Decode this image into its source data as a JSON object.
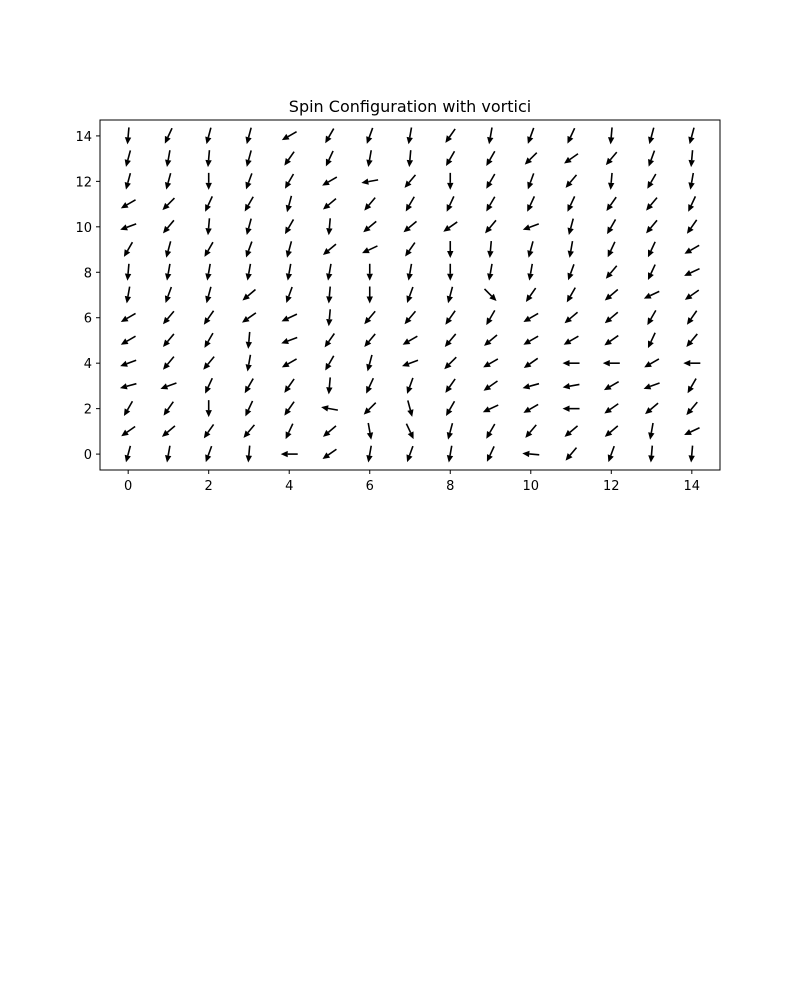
{
  "chart_data": {
    "type": "quiver",
    "title": "Spin Configuration with vortici",
    "xlabel": "",
    "ylabel": "",
    "xlim": [
      -0.7,
      14.7
    ],
    "ylim": [
      -0.7,
      14.7
    ],
    "xticks": [
      0,
      2,
      4,
      6,
      8,
      10,
      12,
      14
    ],
    "yticks": [
      0,
      2,
      4,
      6,
      8,
      10,
      12,
      14
    ],
    "grid": false,
    "arrow_color": "#000000",
    "grid_x": [
      0,
      1,
      2,
      3,
      4,
      5,
      6,
      7,
      8,
      9,
      10,
      11,
      12,
      13,
      14
    ],
    "grid_y": [
      0,
      1,
      2,
      3,
      4,
      5,
      6,
      7,
      8,
      9,
      10,
      11,
      12,
      13,
      14
    ],
    "angles_deg_note": "direction of each spin vector, rows indexed by y (0..14), columns by x (0..14); 0 = +x, 90 = +y",
    "angles_deg": [
      [
        -105,
        -100,
        -110,
        -95,
        180,
        -145,
        -100,
        -110,
        -100,
        -115,
        175,
        -130,
        -110,
        -95,
        -95
      ],
      [
        -145,
        -140,
        -125,
        -130,
        -115,
        -140,
        -80,
        -65,
        -105,
        -120,
        -130,
        -140,
        -140,
        -100,
        -155
      ],
      [
        -120,
        -125,
        -90,
        -115,
        -125,
        170,
        -135,
        -75,
        -120,
        -155,
        -150,
        180,
        -145,
        -140,
        -130
      ],
      [
        -165,
        -160,
        -115,
        -120,
        -125,
        -95,
        -115,
        -110,
        -125,
        -145,
        -165,
        -170,
        -150,
        -160,
        -120
      ],
      [
        -160,
        -130,
        -130,
        -100,
        -150,
        -120,
        -105,
        -160,
        -135,
        -150,
        -145,
        180,
        180,
        -150,
        180
      ],
      [
        -150,
        -130,
        -120,
        -95,
        -160,
        -125,
        -130,
        -150,
        -130,
        -140,
        -150,
        -150,
        -145,
        -115,
        -130
      ],
      [
        -150,
        -130,
        -125,
        -145,
        -155,
        -95,
        -130,
        -130,
        -125,
        -120,
        -150,
        -140,
        -140,
        -120,
        -125
      ],
      [
        -100,
        -110,
        -105,
        -140,
        -110,
        -95,
        -90,
        -110,
        -105,
        -45,
        -125,
        -120,
        -140,
        -155,
        -145
      ],
      [
        -95,
        -100,
        -100,
        -100,
        -100,
        -100,
        -90,
        -100,
        -90,
        -100,
        -100,
        -110,
        -130,
        -115,
        -155
      ],
      [
        -120,
        -105,
        -120,
        -110,
        -105,
        -140,
        -155,
        -125,
        -90,
        -95,
        -105,
        -100,
        -115,
        -115,
        -150
      ],
      [
        -160,
        -130,
        -95,
        -105,
        -120,
        -95,
        -140,
        -140,
        -145,
        -130,
        -160,
        -105,
        -120,
        -130,
        -125
      ],
      [
        -150,
        -135,
        -115,
        -120,
        -105,
        -140,
        -130,
        -120,
        -115,
        -120,
        -115,
        -115,
        -125,
        -130,
        -115
      ],
      [
        -105,
        -105,
        -90,
        -110,
        -120,
        -150,
        -170,
        -130,
        -90,
        -120,
        -110,
        -130,
        -95,
        -120,
        -100
      ],
      [
        -105,
        -100,
        -95,
        -105,
        -125,
        -115,
        -100,
        -95,
        -120,
        -120,
        -135,
        -145,
        -130,
        -110,
        -95
      ],
      [
        -95,
        -115,
        -105,
        -105,
        -150,
        -120,
        -110,
        -100,
        -125,
        -100,
        -110,
        -115,
        -95,
        -105,
        -105
      ]
    ]
  }
}
